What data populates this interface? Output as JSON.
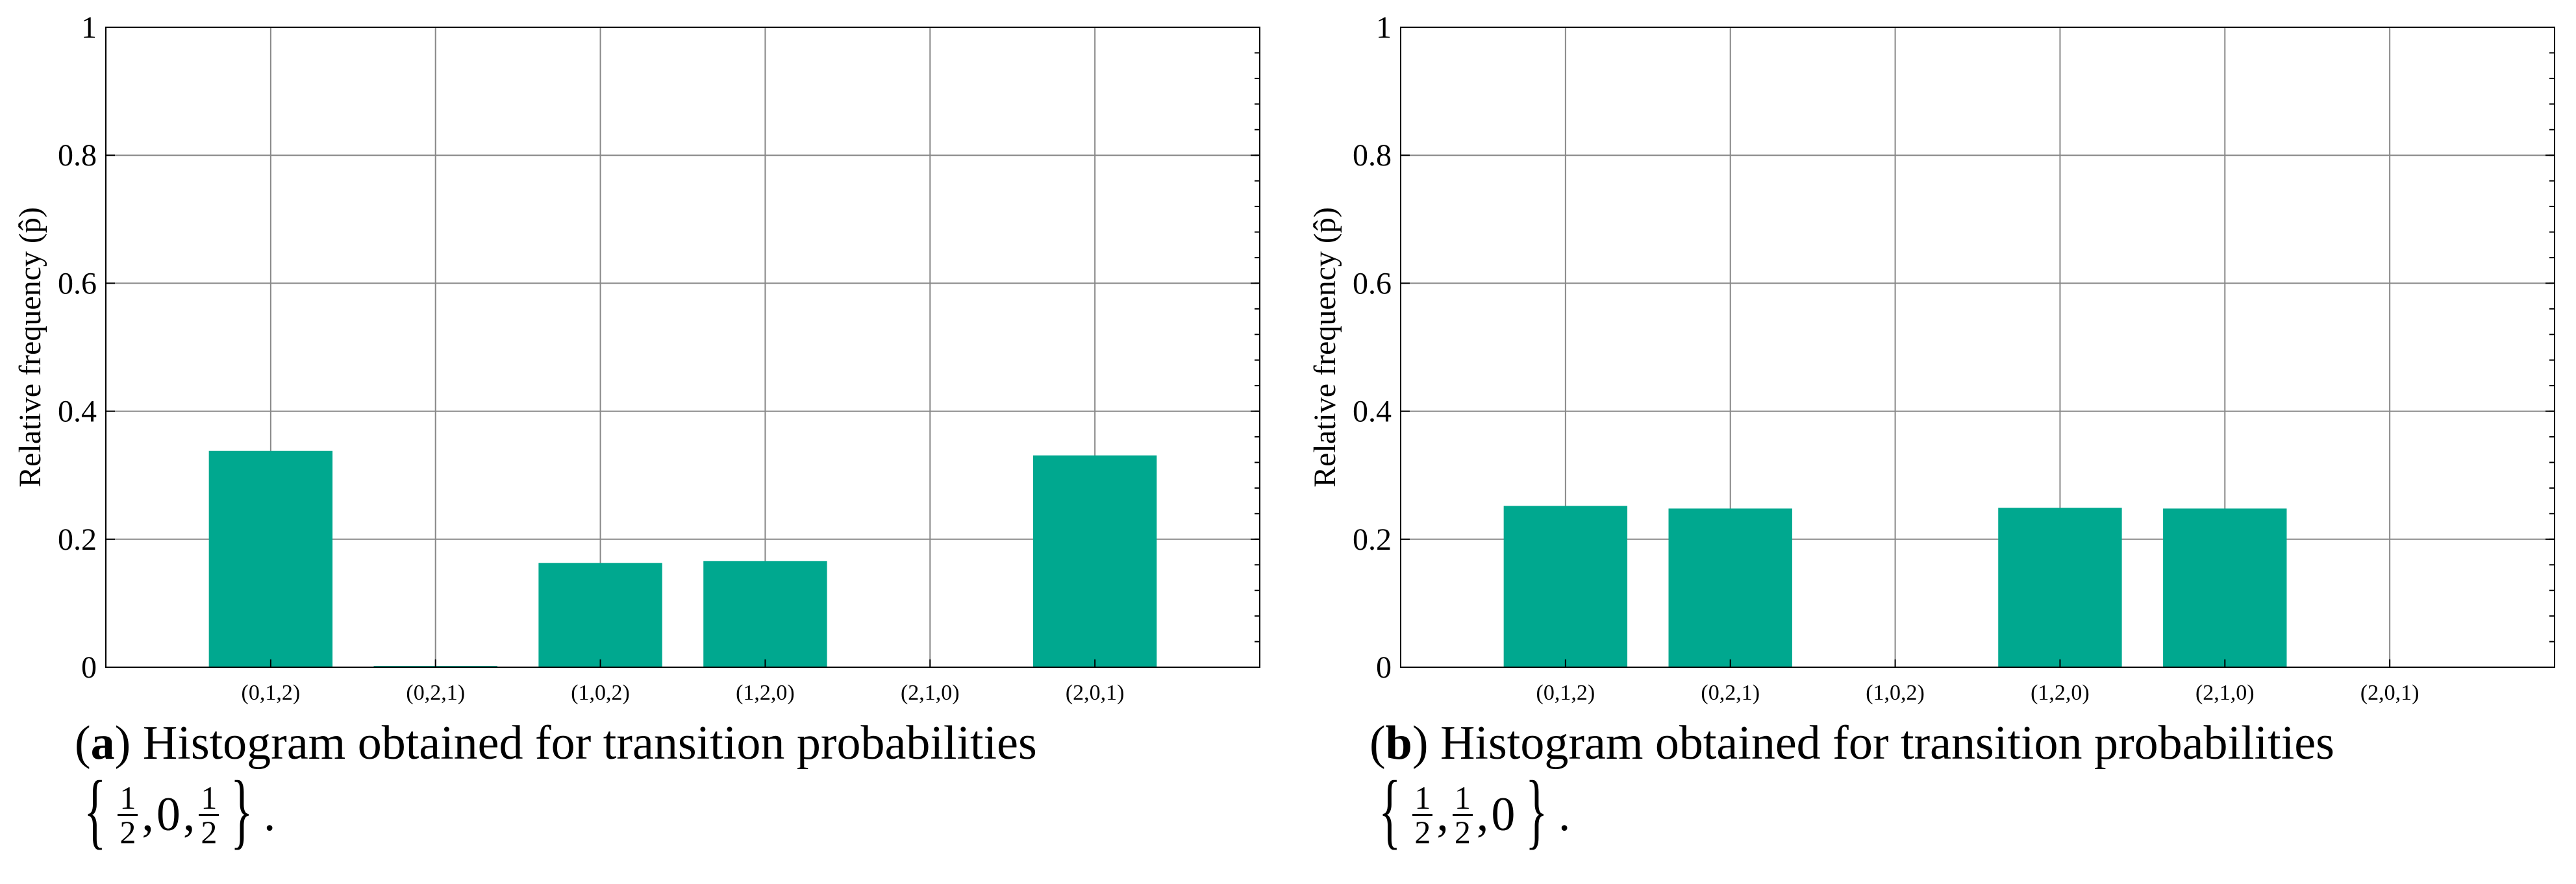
{
  "chart_data": [
    {
      "type": "bar",
      "panel": "a",
      "categories": [
        "(0,1,2)",
        "(0,2,1)",
        "(1,0,2)",
        "(1,2,0)",
        "(2,1,0)",
        "(2,0,1)"
      ],
      "values": [
        0.338,
        0.002,
        0.163,
        0.166,
        0.0,
        0.331
      ],
      "ylabel": "Relative frequency (p̂)",
      "xlabel": "",
      "ylim": [
        0,
        1
      ],
      "yticks": [
        "0",
        "0.2",
        "0.4",
        "0.6",
        "0.8",
        "1"
      ],
      "bar_color": "#00a88f",
      "grid": true
    },
    {
      "type": "bar",
      "panel": "b",
      "categories": [
        "(0,1,2)",
        "(0,2,1)",
        "(1,0,2)",
        "(1,2,0)",
        "(2,1,0)",
        "(2,0,1)"
      ],
      "values": [
        0.252,
        0.248,
        0.0,
        0.249,
        0.248,
        0.0
      ],
      "ylabel": "Relative frequency (p̂)",
      "xlabel": "",
      "ylim": [
        0,
        1
      ],
      "yticks": [
        "0",
        "0.2",
        "0.4",
        "0.6",
        "0.8",
        "1"
      ],
      "bar_color": "#00a88f",
      "grid": true
    }
  ],
  "captions": [
    {
      "open": "(",
      "tag": "a",
      "close": ")",
      "text": "Histogram obtained for transition probabilities",
      "formula": {
        "brace_open": "{",
        "brace_close": "}",
        "terms": [
          "1|2",
          "0",
          "1|2"
        ],
        "end": "."
      }
    },
    {
      "open": "(",
      "tag": "b",
      "close": ")",
      "text": "Histogram obtained for transition probabilities",
      "formula": {
        "brace_open": "{",
        "brace_close": "}",
        "terms": [
          "1|2",
          "1|2",
          "0"
        ],
        "end": "."
      }
    }
  ]
}
